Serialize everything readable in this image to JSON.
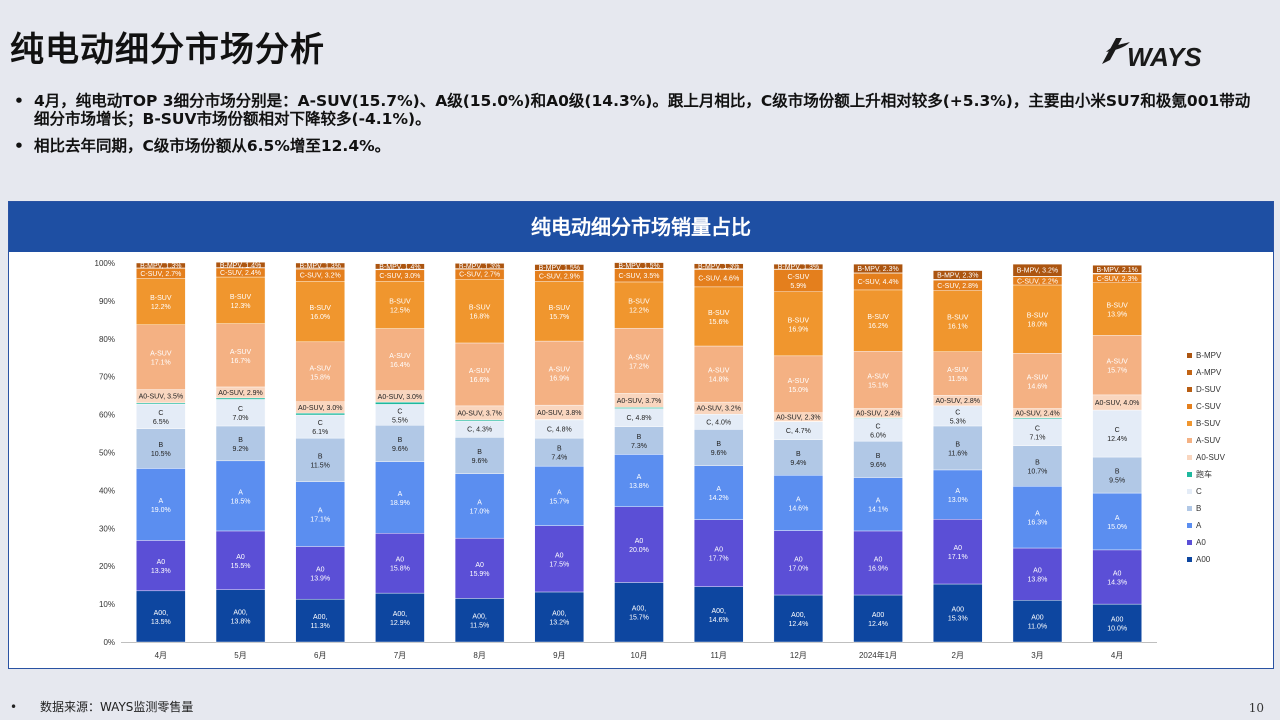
{
  "page": {
    "title": "纯电动细分市场分析",
    "logo_text": "WAYS",
    "bullets": [
      "4月，纯电动TOP 3细分市场分别是：A-SUV(15.7%)、A级(15.0%)和A0级(14.3%)。跟上月相比，C级市场份额上升相对较多(+5.3%)，主要由小米SU7和极氪001带动细分市场增长；B-SUV市场份额相对下降较多(-4.1%)。",
      "相比去年同期，C级市场份额从6.5%增至12.4%。"
    ],
    "panel_title": "纯电动细分市场销量占比",
    "footer_note": "数据来源：WAYS监测零售量",
    "page_number": "10"
  },
  "colors": {
    "header": "#1e4fa3",
    "A00": "#0d46a0",
    "A0": "#5b4fd6",
    "A": "#5b8ef0",
    "B": "#b1c8e6",
    "C": "#e4ecf7",
    "跑车": "#1fb89e",
    "A0-SUV": "#f9d6bf",
    "A-SUV": "#f4b183",
    "B-SUV": "#f0962e",
    "C-SUV": "#e47f1d",
    "D-SUV": "#b85d12",
    "A-MPV": "#c26414",
    "B-MPV": "#ac5510"
  },
  "chart_data": {
    "type": "bar",
    "stacked": true,
    "title": "纯电动细分市场销量占比",
    "ylim": [
      0,
      100
    ],
    "ytick_labels": [
      "0%",
      "10%",
      "20%",
      "30%",
      "40%",
      "50%",
      "60%",
      "70%",
      "80%",
      "90%",
      "100%"
    ],
    "legend_position": "right",
    "categories": [
      "4月",
      "5月",
      "6月",
      "7月",
      "8月",
      "9月",
      "10月",
      "11月",
      "12月",
      "2024年1月",
      "2月",
      "3月",
      "4月"
    ],
    "series": [
      {
        "name": "A00",
        "values": [
          13.5,
          13.8,
          11.3,
          12.9,
          11.5,
          13.2,
          15.7,
          14.6,
          12.4,
          12.4,
          15.3,
          11.0,
          10.0
        ]
      },
      {
        "name": "A0",
        "values": [
          13.3,
          15.5,
          13.9,
          15.8,
          15.9,
          17.5,
          20.0,
          17.7,
          17.0,
          16.9,
          17.1,
          13.8,
          14.3
        ]
      },
      {
        "name": "A",
        "values": [
          19.0,
          18.5,
          17.1,
          18.9,
          17.0,
          15.7,
          13.8,
          14.2,
          14.6,
          14.1,
          13.0,
          16.3,
          15.0
        ]
      },
      {
        "name": "B",
        "values": [
          10.5,
          9.2,
          11.5,
          9.6,
          9.6,
          7.4,
          7.3,
          9.6,
          9.4,
          9.6,
          11.6,
          10.7,
          9.5
        ]
      },
      {
        "name": "C",
        "values": [
          6.5,
          7.0,
          6.1,
          5.5,
          4.3,
          4.8,
          4.8,
          4.0,
          4.7,
          6.0,
          5.3,
          7.1,
          12.4
        ]
      },
      {
        "name": "跑车",
        "values": [
          0.3,
          0.4,
          0.5,
          0.6,
          0.3,
          0.1,
          0.3,
          0.0,
          0.1,
          0.2,
          0.0,
          0.3,
          0.0
        ]
      },
      {
        "name": "A0-SUV",
        "values": [
          3.5,
          2.9,
          3.0,
          3.0,
          3.7,
          3.8,
          3.7,
          3.2,
          2.3,
          2.4,
          2.8,
          2.4,
          4.0
        ]
      },
      {
        "name": "A-SUV",
        "values": [
          17.1,
          16.7,
          15.8,
          16.4,
          16.6,
          16.9,
          17.2,
          14.8,
          15.0,
          15.1,
          11.5,
          14.6,
          15.7
        ]
      },
      {
        "name": "B-SUV",
        "values": [
          12.2,
          12.3,
          16.0,
          12.5,
          16.8,
          15.7,
          12.2,
          15.6,
          16.9,
          16.2,
          16.1,
          18.0,
          13.9
        ]
      },
      {
        "name": "C-SUV",
        "values": [
          2.7,
          2.4,
          3.2,
          3.0,
          2.7,
          2.9,
          3.5,
          4.6,
          5.9,
          4.4,
          2.8,
          2.2,
          2.3
        ]
      },
      {
        "name": "D-SUV",
        "values": [
          0.1,
          0.1,
          0.2,
          0.1,
          0.2,
          0.1,
          0.1,
          0.1,
          0.1,
          0.1,
          0.1,
          0.1,
          0.1
        ]
      },
      {
        "name": "A-MPV",
        "values": [
          0.0,
          0.0,
          0.1,
          0.1,
          0.0,
          0.0,
          0.0,
          0.1,
          0.0,
          0.0,
          0.1,
          0.0,
          0.1
        ]
      },
      {
        "name": "B-MPV",
        "values": [
          1.3,
          1.4,
          1.3,
          1.4,
          1.3,
          1.5,
          1.5,
          1.3,
          1.3,
          2.3,
          2.3,
          3.2,
          2.1
        ]
      }
    ],
    "legend_order": [
      "B-MPV",
      "A-MPV",
      "D-SUV",
      "C-SUV",
      "B-SUV",
      "A-SUV",
      "A0-SUV",
      "跑车",
      "C",
      "B",
      "A",
      "A0",
      "A00"
    ],
    "labeled_series": [
      "A00",
      "A0",
      "A",
      "B",
      "C",
      "A0-SUV",
      "A-SUV",
      "B-SUV",
      "C-SUV",
      "B-MPV"
    ],
    "label_names": {
      "A00": [
        "A00,",
        "A00,",
        "A00,",
        "A00,",
        "A00,",
        "A00,",
        "A00,",
        "A00,",
        "A00,",
        "A00",
        "A00",
        "A00",
        "A00"
      ]
    }
  }
}
